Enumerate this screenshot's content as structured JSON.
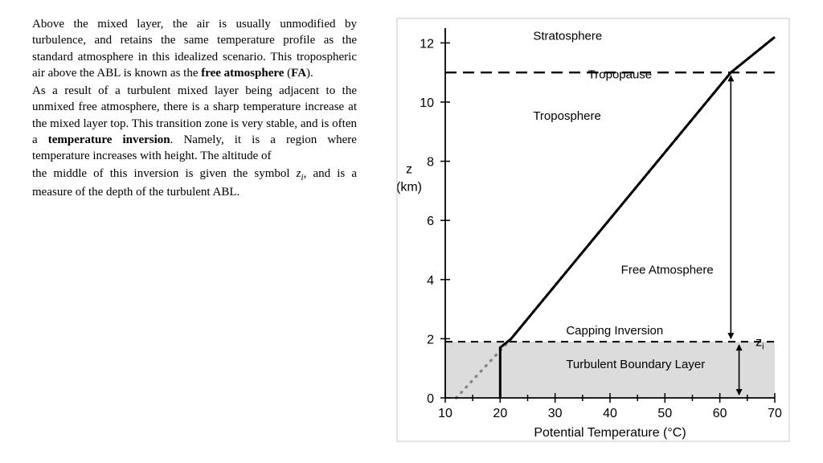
{
  "text": {
    "p1a": "Above the mixed layer, the air is usually unmodified by turbulence, and retains the same temperature profile as the standard atmosphere in this idealized scenario. This tropospheric air above the ABL is known as the ",
    "p1b": "free atmosphere",
    "p1c": " (",
    "p1d": "FA",
    "p1e": ").",
    "p2a": "As a result of a turbulent mixed layer being adjacent to the unmixed free atmosphere, there is a sharp temperature increase at the mixed layer top. This transition zone is very stable, and is often a ",
    "p2b": "temperature inversion",
    "p2c": ". Namely, it is a region where temperature increases with height. The altitude of",
    "p3a": "the middle of this inversion is given the symbol ",
    "p3b": "z",
    "p3c": "i",
    "p3d": ", and is a measure of the depth of the turbulent ABL."
  },
  "chart": {
    "type": "line",
    "xlabel": "Potential Temperature (°C)",
    "ylabel_top": "z",
    "ylabel_bot": "(km)",
    "xlim": [
      10,
      70
    ],
    "ylim": [
      0,
      12.5
    ],
    "xticks": [
      10,
      20,
      30,
      40,
      50,
      60,
      70
    ],
    "yticks": [
      0,
      2,
      4,
      6,
      8,
      10,
      12
    ],
    "background_color": "#ffffff",
    "shade_color": "#dcdcdc",
    "shade_top_z": 1.9,
    "axis_color": "#000000",
    "profile_color": "#000000",
    "profile_width": 3,
    "std_dotted_color": "#888888",
    "std_dotted_width": 3.5,
    "tropopause_z": 11.0,
    "capping_z": 1.9,
    "labels": {
      "stratosphere": "Stratosphere",
      "tropopause": "Tropopause",
      "troposphere": "Troposphere",
      "free_atm": "Free Atmosphere",
      "capping": "Capping Inversion",
      "tbl": "Turbulent Boundary Layer",
      "zi": "zᵢ"
    },
    "label_fontsize": 15,
    "axis_fontsize": 16,
    "profile_points": [
      {
        "x": 20.0,
        "z": 0.0
      },
      {
        "x": 20.0,
        "z": 1.7
      },
      {
        "x": 22.0,
        "z": 2.0
      },
      {
        "x": 62.0,
        "z": 11.0
      },
      {
        "x": 70.0,
        "z": 12.2
      }
    ],
    "std_points": [
      {
        "x": 12.0,
        "z": 0.0
      },
      {
        "x": 22.0,
        "z": 2.0
      },
      {
        "x": 62.0,
        "z": 11.0
      },
      {
        "x": 70.0,
        "z": 12.2
      }
    ]
  }
}
